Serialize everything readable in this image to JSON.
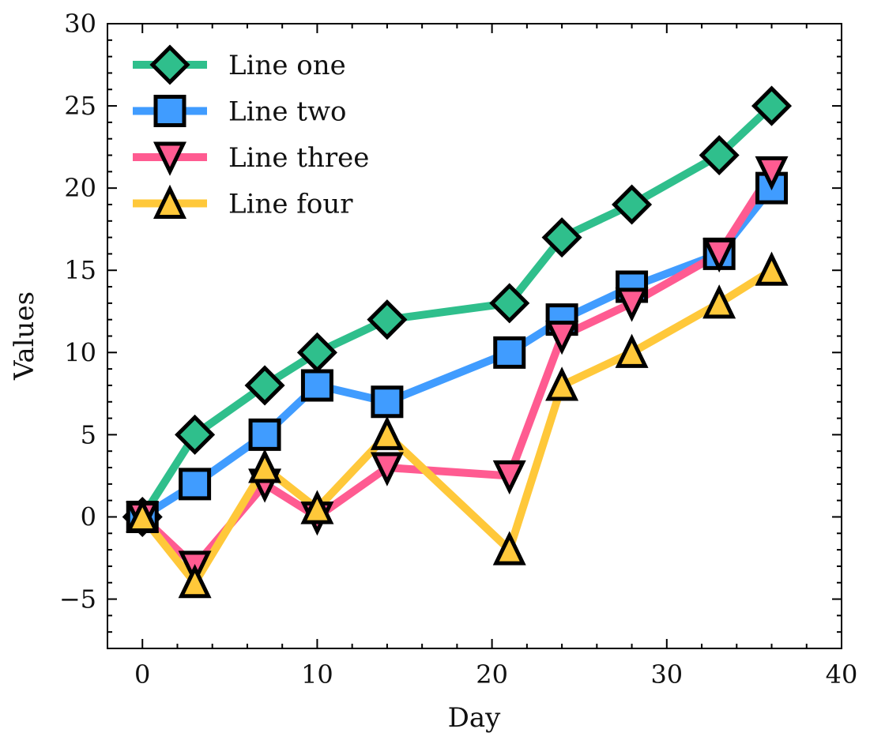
{
  "chart_data": {
    "type": "line",
    "xlabel": "Day",
    "ylabel": "Values",
    "xlim": [
      -2,
      40
    ],
    "ylim": [
      -8,
      30
    ],
    "x_ticks": [
      0,
      10,
      20,
      30,
      40
    ],
    "y_ticks": [
      -5,
      0,
      5,
      10,
      15,
      20,
      25,
      30
    ],
    "x_tick_labels": [
      "0",
      "10",
      "20",
      "30",
      "40"
    ],
    "y_tick_labels": [
      "−5",
      "0",
      "5",
      "10",
      "15",
      "20",
      "25",
      "30"
    ],
    "x_minor_step": 2,
    "y_minor_step": 1,
    "grid": false,
    "legend_position": "top-left",
    "x": [
      0,
      3,
      7,
      10,
      14,
      21,
      24,
      28,
      33,
      36
    ],
    "series": [
      {
        "name": "Line one",
        "marker": "diamond",
        "color": "#2fbf8c",
        "values": [
          0,
          5,
          8,
          10,
          12,
          13,
          17,
          19,
          22,
          25
        ]
      },
      {
        "name": "Line two",
        "marker": "square",
        "color": "#409cff",
        "values": [
          0,
          2,
          5,
          8,
          7,
          10,
          12,
          14,
          16,
          20
        ]
      },
      {
        "name": "Line three",
        "marker": "triangle-down",
        "color": "#ff5b91",
        "values": [
          0,
          -3,
          2,
          0,
          3,
          2.5,
          11,
          13,
          16,
          21
        ]
      },
      {
        "name": "Line four",
        "marker": "triangle-up",
        "color": "#ffc83a",
        "values": [
          0,
          -4,
          3,
          0.5,
          5,
          -2,
          8,
          10,
          13,
          15
        ]
      }
    ]
  }
}
